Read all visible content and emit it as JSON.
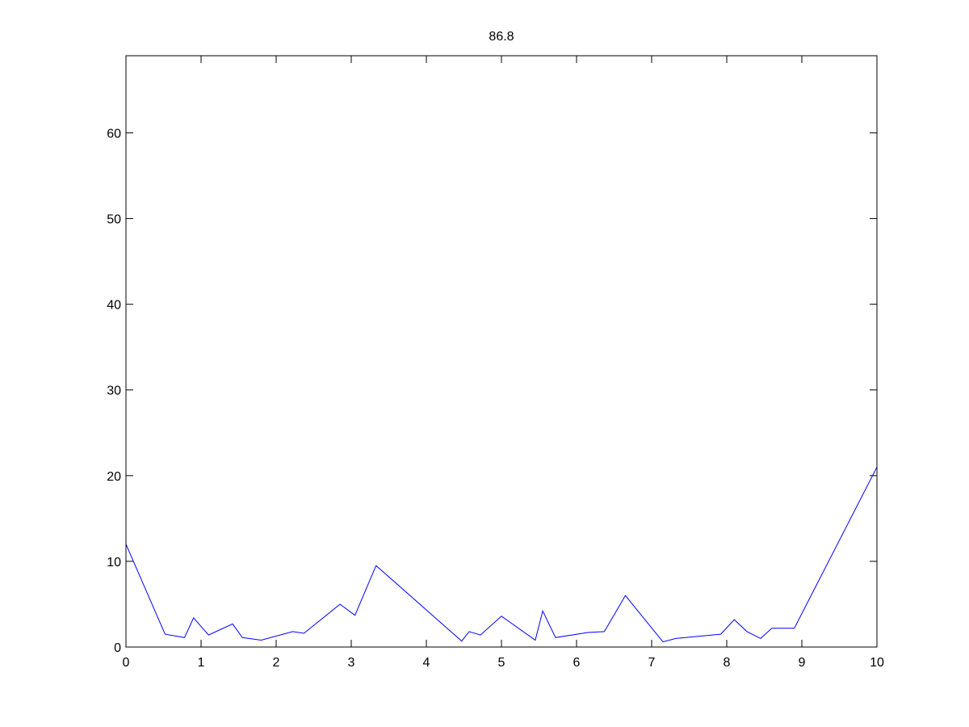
{
  "chart_data": {
    "type": "line",
    "title": "86.8",
    "xlabel": "",
    "ylabel": "",
    "xlim": [
      0,
      10
    ],
    "ylim": [
      0,
      69
    ],
    "grid": false,
    "x_ticks": [
      0,
      1,
      2,
      3,
      4,
      5,
      6,
      7,
      8,
      9,
      10
    ],
    "y_ticks": [
      0,
      10,
      20,
      30,
      40,
      50,
      60
    ],
    "series": [
      {
        "color": "#0000ff",
        "x": [
          0,
          0.52,
          0.78,
          0.9,
          1.1,
          1.42,
          1.55,
          1.8,
          2.22,
          2.37,
          2.85,
          3.05,
          3.33,
          4.47,
          4.57,
          4.72,
          5.0,
          5.45,
          5.55,
          5.72,
          6.15,
          6.37,
          6.65,
          7.15,
          7.32,
          7.92,
          8.1,
          8.27,
          8.45,
          8.6,
          8.9,
          10.0
        ],
        "y": [
          12,
          1.5,
          1.1,
          3.4,
          1.4,
          2.7,
          1.1,
          0.8,
          1.8,
          1.6,
          5.0,
          3.7,
          9.5,
          0.7,
          1.8,
          1.4,
          3.6,
          0.8,
          4.2,
          1.1,
          1.7,
          1.8,
          6.0,
          0.6,
          1.0,
          1.5,
          3.2,
          1.8,
          1.0,
          2.2,
          2.2,
          21
        ]
      }
    ]
  }
}
